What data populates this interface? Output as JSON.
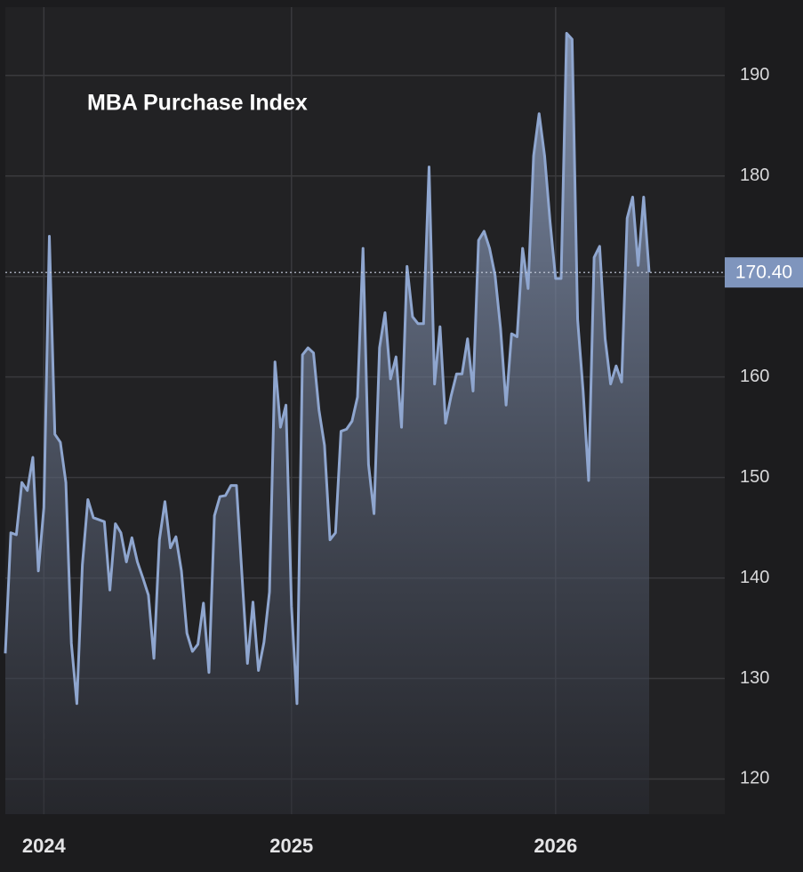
{
  "chart_data": {
    "type": "area",
    "title": "MBA Purchase Index",
    "categories": [
      null,
      null,
      null,
      null,
      null,
      null,
      null,
      "2024",
      null,
      null,
      null,
      null,
      null,
      null,
      null,
      null,
      null,
      null,
      null,
      null,
      null,
      null,
      null,
      null,
      null,
      null,
      null,
      null,
      null,
      null,
      null,
      null,
      null,
      null,
      null,
      null,
      null,
      null,
      null,
      null,
      null,
      null,
      null,
      null,
      null,
      null,
      null,
      null,
      null,
      null,
      null,
      null,
      "2025",
      null,
      null,
      null,
      null,
      null,
      null,
      null,
      null,
      null,
      null,
      null,
      null,
      null,
      null,
      null,
      null,
      null,
      null,
      null,
      null,
      null,
      null,
      null,
      null,
      null,
      null,
      null,
      null,
      null,
      null,
      null,
      null,
      null,
      null,
      null,
      null,
      null,
      null,
      null,
      null,
      null,
      null,
      null,
      null,
      null,
      null,
      null,
      "2026",
      null,
      null,
      null,
      null,
      null,
      null,
      null,
      null,
      null,
      null,
      null,
      null,
      null,
      null,
      null,
      null,
      null
    ],
    "values": [
      132.5,
      144.5,
      144.3,
      149.5,
      148.7,
      152,
      140.7,
      147,
      174,
      154.3,
      153.5,
      149.5,
      133.5,
      127.5,
      141.3,
      147.8,
      146,
      145.8,
      145.6,
      138.8,
      145.4,
      144.5,
      141.6,
      144,
      141.6,
      140,
      138.3,
      132,
      143.8,
      147.6,
      143,
      144.1,
      140.7,
      134.5,
      132.7,
      133.4,
      137.5,
      130.6,
      146.2,
      148.1,
      148.2,
      149.2,
      149.2,
      140.3,
      131.5,
      137.6,
      130.8,
      133.6,
      138.6,
      161.5,
      155,
      157.2,
      137.2,
      127.5,
      162.2,
      162.9,
      162.4,
      156.7,
      153.2,
      143.8,
      144.5,
      154.6,
      154.8,
      155.6,
      158,
      172.8,
      151.3,
      146.4,
      162.9,
      166.4,
      159.8,
      162,
      155,
      171,
      166,
      165.3,
      165.3,
      180.9,
      159.3,
      165,
      155.4,
      158.1,
      160.3,
      160.3,
      163.8,
      158.6,
      173.6,
      174.5,
      172.8,
      170.1,
      164.8,
      157.2,
      164.3,
      164,
      172.8,
      168.8,
      182,
      186.2,
      182,
      175.4,
      169.8,
      169.8,
      194.2,
      193.6,
      165.7,
      158.6,
      149.7,
      171.9,
      173,
      163.8,
      159.3,
      161.1,
      159.5,
      175.8,
      177.9,
      171.1,
      177.9,
      170.4
    ],
    "last_price_label": "170.40",
    "color": "#8fa6cf",
    "ylim": [
      116.5,
      196.8
    ],
    "yticks": [
      120,
      130,
      140,
      150,
      160,
      170,
      180,
      190
    ],
    "grid": true
  }
}
